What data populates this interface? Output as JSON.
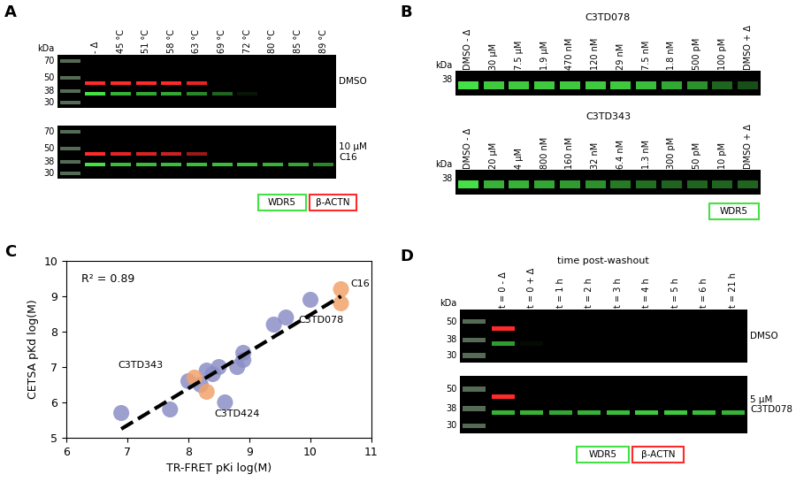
{
  "panel_letters": [
    "A",
    "B",
    "C",
    "D"
  ],
  "blot_panels": [
    {
      "ladder": true,
      "channels": [
        {
          "label": "WDR5",
          "color": "#45e045",
          "kda": 36
        },
        {
          "label": "β-ACTN",
          "color": "#ff2a2a",
          "kda": 45
        }
      ],
      "blots": [
        {
          "marker_title": "kDa",
          "markers": [
            70,
            50,
            38,
            30
          ],
          "lanes": [
            "- Δ",
            "45 °C",
            "51 °C",
            "58 °C",
            "63 °C",
            "69 °C",
            "72 °C",
            "80 °C",
            "85 °C",
            "89 °C"
          ],
          "label": "DMSO",
          "intensity": {
            "WDR5": [
              1.0,
              0.8,
              0.75,
              0.75,
              0.6,
              0.45,
              0.1,
              0,
              0,
              0
            ],
            "β-ACTN": [
              1.0,
              1.0,
              1.0,
              1.0,
              0.9,
              0,
              0,
              0,
              0,
              0
            ]
          }
        },
        {
          "markers": [
            70,
            50,
            38,
            30
          ],
          "label": "10 µM\nC16",
          "intensity": {
            "WDR5": [
              1.0,
              0.85,
              0.85,
              0.85,
              0.85,
              0.85,
              0.85,
              0.8,
              0.75,
              0.6
            ],
            "β-ACTN": [
              1.0,
              0.9,
              0.85,
              0.8,
              0.6,
              0,
              0,
              0,
              0,
              0
            ]
          }
        }
      ]
    },
    {
      "ladder": false,
      "channels": [
        {
          "label": "WDR5",
          "color": "#45e045",
          "kda": 36
        }
      ],
      "blots": [
        {
          "title": "C3TD078",
          "marker_title": "kDa",
          "markers": [
            38
          ],
          "lanes": [
            "DMSO - Δ",
            "30 µM",
            "7.5 µM",
            "1.9 µM",
            "470 nM",
            "120 nM",
            "29 nM",
            "7.5 nM",
            "1.8 nM",
            "500 pM",
            "100 pM",
            "DMSO + Δ"
          ],
          "intensity": {
            "WDR5": [
              1.0,
              0.9,
              0.9,
              0.9,
              0.9,
              0.9,
              0.9,
              0.85,
              0.75,
              0.65,
              0.45,
              0.35
            ]
          }
        },
        {
          "title": "C3TD343",
          "marker_title": "kDa",
          "markers": [
            38
          ],
          "lanes": [
            "DMSO - Δ",
            "20 µM",
            "4 µM",
            "800 nM",
            "160 nM",
            "32 nM",
            "6.4 nM",
            "1.3 nM",
            "300 pM",
            "50 pM",
            "10 pM",
            "DMSO + Δ"
          ],
          "intensity": {
            "WDR5": [
              1.0,
              0.8,
              0.8,
              0.75,
              0.7,
              0.65,
              0.55,
              0.5,
              0.45,
              0.45,
              0.45,
              0.45
            ]
          }
        }
      ]
    },
    {
      "ladder": true,
      "title": "time post-washout",
      "channels": [
        {
          "label": "WDR5",
          "color": "#45e045",
          "kda": 36
        },
        {
          "label": "β-ACTN",
          "color": "#ff2a2a",
          "kda": 45
        }
      ],
      "blots": [
        {
          "marker_title": "kDa",
          "markers": [
            50,
            38,
            30
          ],
          "lanes": [
            "t = 0 - Δ",
            "t = 0 + Δ",
            "t = 1 h",
            "t = 2 h",
            "t = 3 h",
            "t = 4 h",
            "t = 5 h",
            "t = 6 h",
            "t = 21 h"
          ],
          "label": "DMSO",
          "intensity": {
            "WDR5": [
              0.7,
              0.05,
              0,
              0,
              0,
              0,
              0,
              0,
              0
            ],
            "β-ACTN": [
              1.0,
              0,
              0,
              0,
              0,
              0,
              0,
              0,
              0
            ]
          }
        },
        {
          "markers": [
            50,
            38,
            30
          ],
          "label": "5 µM\nC3TD078",
          "intensity": {
            "WDR5": [
              0.8,
              0.8,
              0.75,
              0.8,
              0.85,
              0.9,
              0.9,
              0.85,
              0.8
            ],
            "β-ACTN": [
              1.0,
              0,
              0,
              0,
              0,
              0,
              0,
              0,
              0
            ]
          }
        }
      ]
    }
  ],
  "chart_data": {
    "type": "scatter",
    "xlabel": "TR-FRET pKi log(M)",
    "ylabel": "CETSA pKd log(M)",
    "xlim": [
      6,
      11
    ],
    "ylim": [
      5,
      10
    ],
    "xticks": [
      6,
      7,
      8,
      9,
      10,
      11
    ],
    "yticks": [
      5,
      6,
      7,
      8,
      9,
      10
    ],
    "series": [
      {
        "color": "#8c8fc6",
        "x": [
          6.9,
          7.7,
          8.0,
          8.2,
          8.3,
          8.4,
          8.5,
          8.6,
          8.8,
          8.9,
          8.9,
          9.4,
          9.6,
          10.0
        ],
        "values": [
          5.7,
          5.8,
          6.6,
          6.5,
          6.9,
          6.8,
          7.0,
          6.0,
          7.0,
          7.2,
          7.4,
          8.2,
          8.4,
          8.9
        ]
      },
      {
        "color": "#f2a36b",
        "x": [
          8.1,
          8.3,
          10.5,
          10.5
        ],
        "values": [
          6.7,
          6.3,
          8.8,
          9.2
        ]
      },
      {
        "type": "line",
        "line_style": "dashed",
        "color": "#000000",
        "x": [
          6.9,
          10.5
        ],
        "values": [
          5.25,
          9.0
        ]
      }
    ],
    "annotations": [
      {
        "text": "R² = 0.89"
      },
      {
        "text": "C16",
        "x": 10.5,
        "y": 9.2
      },
      {
        "text": "C3TD078",
        "x": 10.5,
        "y": 8.8
      },
      {
        "text": "C3TD343",
        "x": 8.1,
        "y": 6.7
      },
      {
        "text": "C3TD424",
        "x": 8.3,
        "y": 6.3
      }
    ]
  }
}
